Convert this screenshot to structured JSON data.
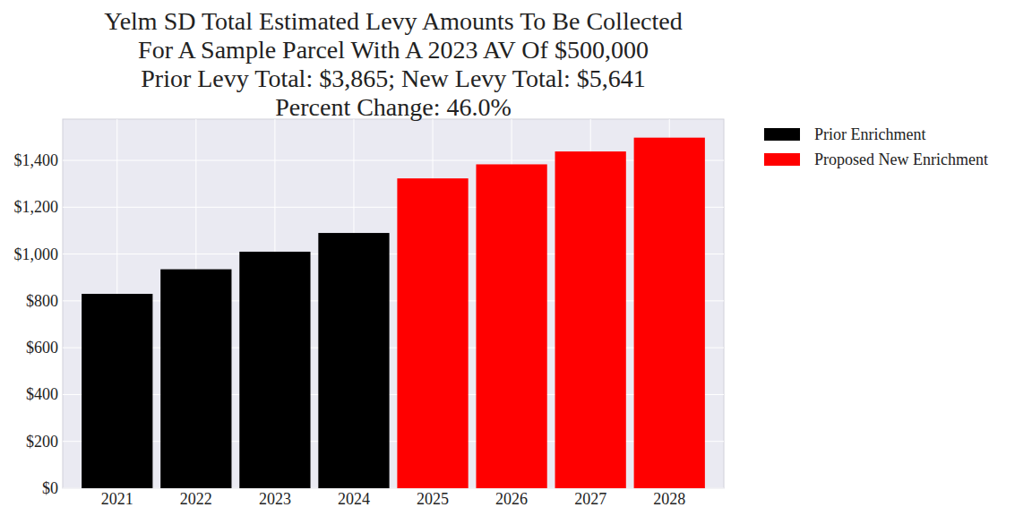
{
  "chart_data": {
    "type": "bar",
    "title": "Yelm SD Total Estimated Levy Amounts To Be Collected\nFor A Sample Parcel With A 2023 AV Of $500,000\nPrior Levy Total:  $3,865; New Levy Total: $5,641\nPercent Change: 46.0%",
    "categories": [
      "2021",
      "2022",
      "2023",
      "2024",
      "2025",
      "2026",
      "2027",
      "2028"
    ],
    "series": [
      {
        "name": "Prior Enrichment",
        "color": "#000000",
        "values": [
          830,
          935,
          1010,
          1090,
          null,
          null,
          null,
          null
        ]
      },
      {
        "name": "Proposed New Enrichment",
        "color": "#ff0000",
        "values": [
          null,
          null,
          null,
          null,
          1323,
          1383,
          1438,
          1497
        ]
      }
    ],
    "ylim": [
      0,
      1576
    ],
    "yticks": [
      {
        "value": 0,
        "label": "$0"
      },
      {
        "value": 200,
        "label": "$200"
      },
      {
        "value": 400,
        "label": "$400"
      },
      {
        "value": 600,
        "label": "$600"
      },
      {
        "value": 800,
        "label": "$800"
      },
      {
        "value": 1000,
        "label": "$1,000"
      },
      {
        "value": 1200,
        "label": "$1,200"
      },
      {
        "value": 1400,
        "label": "$1,400"
      }
    ],
    "grid": true,
    "legend": "outside-right"
  }
}
